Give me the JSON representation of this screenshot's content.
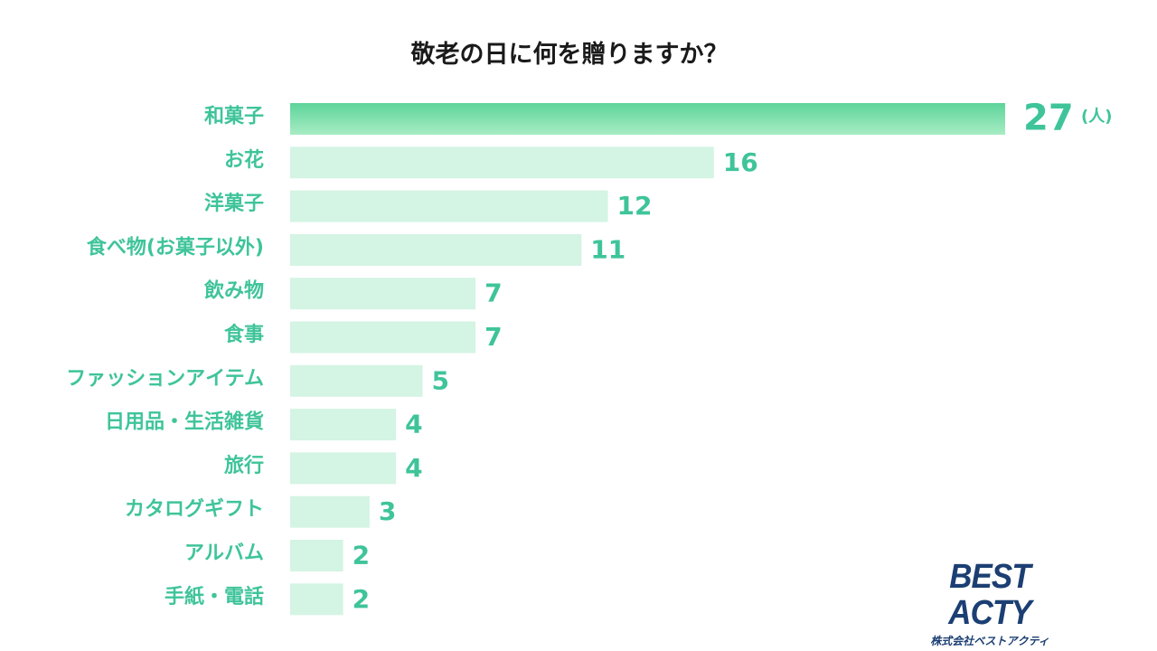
{
  "colors": {
    "accent": "#3fc49a",
    "bar_light": "#d4f4e4",
    "bar_top_start": "#5dd49a",
    "bar_top_end": "#a8ecc4",
    "logo": "#1c3f73"
  },
  "chart_data": {
    "type": "bar",
    "orientation": "horizontal",
    "title": "敬老の日に何を贈りますか？",
    "unit": "(人)",
    "categories": [
      "和菓子",
      "お花",
      "洋菓子",
      "食べ物(お菓子以外)",
      "飲み物",
      "食事",
      "ファッションアイテム",
      "日用品・生活雑貨",
      "旅行",
      "カタログギフト",
      "アルバム",
      "手紙・電話"
    ],
    "values": [
      27,
      16,
      12,
      11,
      7,
      7,
      5,
      4,
      4,
      3,
      2,
      2
    ],
    "xlim": [
      0,
      27
    ],
    "grid": false,
    "legend": "none"
  },
  "logo": {
    "brand": "BEST ACTY",
    "company": "株式会社ベストアクティ"
  }
}
